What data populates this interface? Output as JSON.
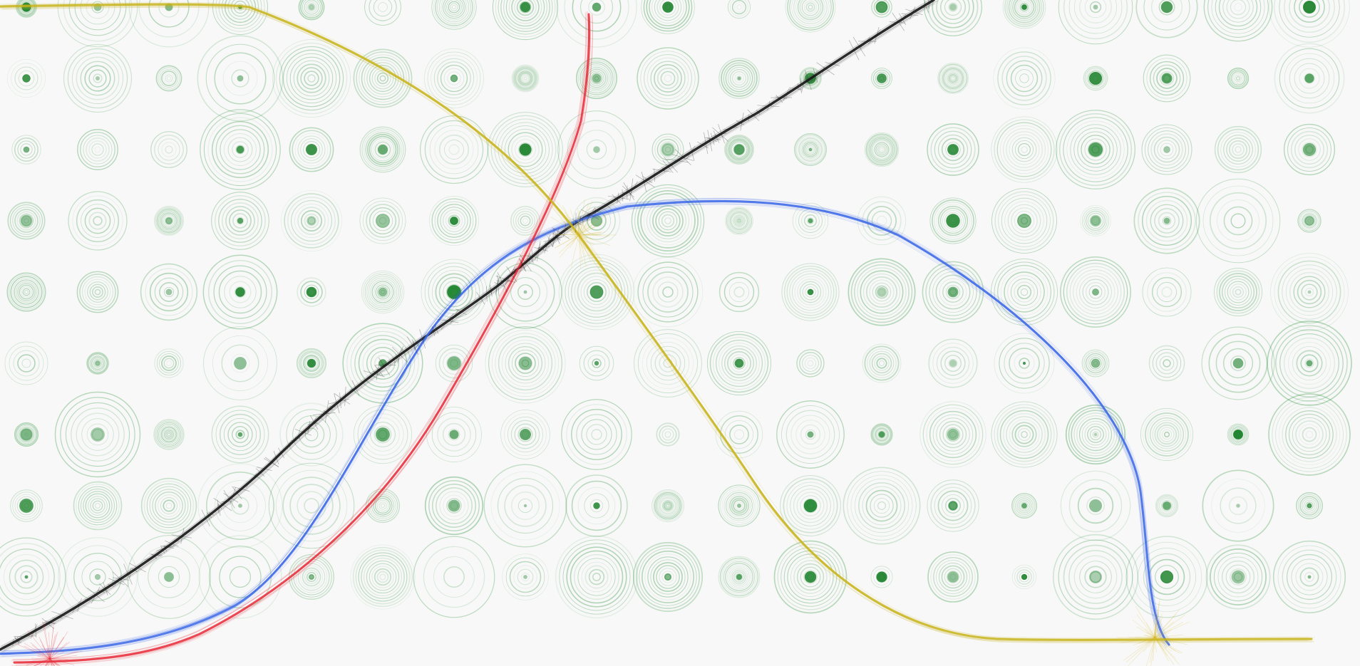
{
  "artwork": {
    "background": "#f8f8f8",
    "ring_color": "#1a8a2a",
    "ring_core_color": "#0e7a1e",
    "curves": [
      {
        "name": "black-curve",
        "color": "#1a1a1a"
      },
      {
        "name": "blue-curve",
        "color": "#3a66e8"
      },
      {
        "name": "red-curve",
        "color": "#e82a38"
      },
      {
        "name": "yellow-curve",
        "color": "#c8b41a"
      }
    ]
  }
}
